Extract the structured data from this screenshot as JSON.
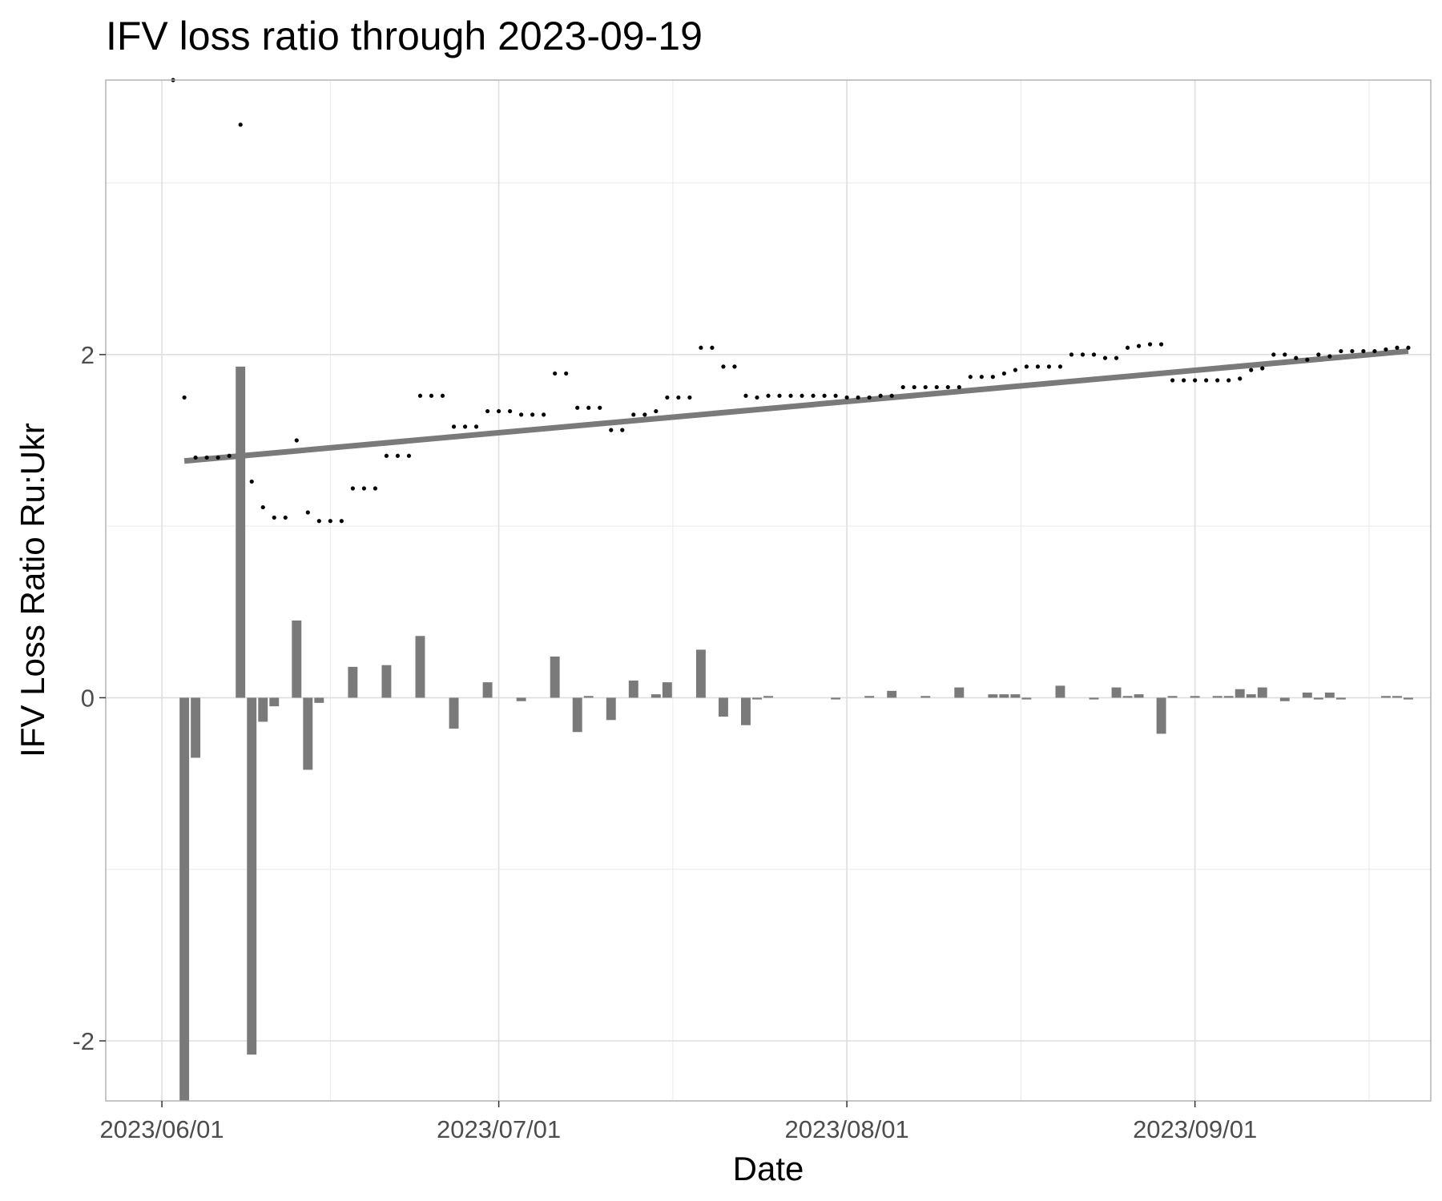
{
  "chart_data": {
    "type": "bar",
    "title": "IFV loss ratio through 2023-09-19",
    "xlabel": "Date",
    "ylabel": "IFV Loss Ratio Ru:Ukr",
    "x_axis": {
      "kind": "date",
      "range": [
        "2023-05-27",
        "2023-09-22"
      ],
      "tick_dates": [
        "2023-06-01",
        "2023-07-01",
        "2023-08-01",
        "2023-09-01"
      ],
      "tick_labels": [
        "2023/06/01",
        "2023/07/01",
        "2023/08/01",
        "2023/09/01"
      ]
    },
    "y_axis": {
      "range": [
        -2.35,
        3.6
      ],
      "ticks": [
        -2,
        0,
        2
      ],
      "tick_labels": [
        "-2",
        "0",
        "2"
      ],
      "minor_ticks": [
        -1,
        1,
        3
      ]
    },
    "grid": true,
    "legend": "none",
    "colors": {
      "bars": "#7a7a7a",
      "trend": "#7a7a7a",
      "points": "#000000"
    },
    "series": [
      {
        "type": "points",
        "values": [
          [
            "2023-06-02",
            3.6
          ],
          [
            "2023-06-03",
            1.75
          ],
          [
            "2023-06-04",
            1.4
          ],
          [
            "2023-06-05",
            1.4
          ],
          [
            "2023-06-06",
            1.4
          ],
          [
            "2023-06-07",
            1.41
          ],
          [
            "2023-06-08",
            3.34
          ],
          [
            "2023-06-09",
            1.26
          ],
          [
            "2023-06-10",
            1.11
          ],
          [
            "2023-06-11",
            1.05
          ],
          [
            "2023-06-12",
            1.05
          ],
          [
            "2023-06-13",
            1.5
          ],
          [
            "2023-06-14",
            1.08
          ],
          [
            "2023-06-15",
            1.03
          ],
          [
            "2023-06-16",
            1.03
          ],
          [
            "2023-06-17",
            1.03
          ],
          [
            "2023-06-18",
            1.22
          ],
          [
            "2023-06-19",
            1.22
          ],
          [
            "2023-06-20",
            1.22
          ],
          [
            "2023-06-21",
            1.41
          ],
          [
            "2023-06-22",
            1.41
          ],
          [
            "2023-06-23",
            1.41
          ],
          [
            "2023-06-24",
            1.76
          ],
          [
            "2023-06-25",
            1.76
          ],
          [
            "2023-06-26",
            1.76
          ],
          [
            "2023-06-27",
            1.58
          ],
          [
            "2023-06-28",
            1.58
          ],
          [
            "2023-06-29",
            1.58
          ],
          [
            "2023-06-30",
            1.67
          ],
          [
            "2023-07-01",
            1.67
          ],
          [
            "2023-07-02",
            1.67
          ],
          [
            "2023-07-03",
            1.65
          ],
          [
            "2023-07-04",
            1.65
          ],
          [
            "2023-07-05",
            1.65
          ],
          [
            "2023-07-06",
            1.89
          ],
          [
            "2023-07-07",
            1.89
          ],
          [
            "2023-07-08",
            1.69
          ],
          [
            "2023-07-09",
            1.69
          ],
          [
            "2023-07-10",
            1.69
          ],
          [
            "2023-07-11",
            1.56
          ],
          [
            "2023-07-12",
            1.56
          ],
          [
            "2023-07-13",
            1.65
          ],
          [
            "2023-07-14",
            1.65
          ],
          [
            "2023-07-15",
            1.67
          ],
          [
            "2023-07-16",
            1.75
          ],
          [
            "2023-07-17",
            1.75
          ],
          [
            "2023-07-18",
            1.75
          ],
          [
            "2023-07-19",
            2.04
          ],
          [
            "2023-07-20",
            2.04
          ],
          [
            "2023-07-21",
            1.93
          ],
          [
            "2023-07-22",
            1.93
          ],
          [
            "2023-07-23",
            1.76
          ],
          [
            "2023-07-24",
            1.75
          ],
          [
            "2023-07-25",
            1.76
          ],
          [
            "2023-07-26",
            1.76
          ],
          [
            "2023-07-27",
            1.76
          ],
          [
            "2023-07-28",
            1.76
          ],
          [
            "2023-07-29",
            1.76
          ],
          [
            "2023-07-30",
            1.76
          ],
          [
            "2023-07-31",
            1.76
          ],
          [
            "2023-08-01",
            1.75
          ],
          [
            "2023-08-02",
            1.75
          ],
          [
            "2023-08-03",
            1.75
          ],
          [
            "2023-08-04",
            1.76
          ],
          [
            "2023-08-05",
            1.76
          ],
          [
            "2023-08-06",
            1.81
          ],
          [
            "2023-08-07",
            1.81
          ],
          [
            "2023-08-08",
            1.81
          ],
          [
            "2023-08-09",
            1.81
          ],
          [
            "2023-08-10",
            1.81
          ],
          [
            "2023-08-11",
            1.81
          ],
          [
            "2023-08-12",
            1.87
          ],
          [
            "2023-08-13",
            1.87
          ],
          [
            "2023-08-14",
            1.87
          ],
          [
            "2023-08-15",
            1.89
          ],
          [
            "2023-08-16",
            1.91
          ],
          [
            "2023-08-17",
            1.93
          ],
          [
            "2023-08-18",
            1.93
          ],
          [
            "2023-08-19",
            1.93
          ],
          [
            "2023-08-20",
            1.93
          ],
          [
            "2023-08-21",
            2.0
          ],
          [
            "2023-08-22",
            2.0
          ],
          [
            "2023-08-23",
            2.0
          ],
          [
            "2023-08-24",
            1.98
          ],
          [
            "2023-08-25",
            1.98
          ],
          [
            "2023-08-26",
            2.04
          ],
          [
            "2023-08-27",
            2.05
          ],
          [
            "2023-08-28",
            2.06
          ],
          [
            "2023-08-29",
            2.06
          ],
          [
            "2023-08-30",
            1.85
          ],
          [
            "2023-08-31",
            1.85
          ],
          [
            "2023-09-01",
            1.85
          ],
          [
            "2023-09-02",
            1.85
          ],
          [
            "2023-09-03",
            1.85
          ],
          [
            "2023-09-04",
            1.85
          ],
          [
            "2023-09-05",
            1.86
          ],
          [
            "2023-09-06",
            1.91
          ],
          [
            "2023-09-07",
            1.92
          ],
          [
            "2023-09-08",
            2.0
          ],
          [
            "2023-09-09",
            2.0
          ],
          [
            "2023-09-10",
            1.98
          ],
          [
            "2023-09-11",
            1.97
          ],
          [
            "2023-09-12",
            2.0
          ],
          [
            "2023-09-13",
            1.99
          ],
          [
            "2023-09-14",
            2.02
          ],
          [
            "2023-09-15",
            2.02
          ],
          [
            "2023-09-16",
            2.02
          ],
          [
            "2023-09-17",
            2.02
          ],
          [
            "2023-09-18",
            2.03
          ],
          [
            "2023-09-19",
            2.04
          ],
          [
            "2023-09-20",
            2.04
          ]
        ]
      },
      {
        "type": "bar",
        "values": [
          [
            "2023-06-03",
            -2.35
          ],
          [
            "2023-06-04",
            -0.35
          ],
          [
            "2023-06-08",
            1.93
          ],
          [
            "2023-06-09",
            -2.08
          ],
          [
            "2023-06-10",
            -0.14
          ],
          [
            "2023-06-11",
            -0.05
          ],
          [
            "2023-06-13",
            0.45
          ],
          [
            "2023-06-14",
            -0.42
          ],
          [
            "2023-06-15",
            -0.03
          ],
          [
            "2023-06-18",
            0.18
          ],
          [
            "2023-06-21",
            0.19
          ],
          [
            "2023-06-24",
            0.36
          ],
          [
            "2023-06-27",
            -0.18
          ],
          [
            "2023-06-30",
            0.09
          ],
          [
            "2023-07-03",
            -0.02
          ],
          [
            "2023-07-06",
            0.24
          ],
          [
            "2023-07-08",
            -0.2
          ],
          [
            "2023-07-09",
            0.01
          ],
          [
            "2023-07-11",
            -0.13
          ],
          [
            "2023-07-13",
            0.1
          ],
          [
            "2023-07-15",
            0.02
          ],
          [
            "2023-07-16",
            0.09
          ],
          [
            "2023-07-19",
            0.28
          ],
          [
            "2023-07-21",
            -0.11
          ],
          [
            "2023-07-23",
            -0.16
          ],
          [
            "2023-07-24",
            -0.01
          ],
          [
            "2023-07-25",
            0.01
          ],
          [
            "2023-07-31",
            -0.01
          ],
          [
            "2023-08-03",
            0.01
          ],
          [
            "2023-08-05",
            0.04
          ],
          [
            "2023-08-08",
            0.01
          ],
          [
            "2023-08-11",
            0.06
          ],
          [
            "2023-08-14",
            0.02
          ],
          [
            "2023-08-15",
            0.02
          ],
          [
            "2023-08-16",
            0.02
          ],
          [
            "2023-08-17",
            -0.01
          ],
          [
            "2023-08-20",
            0.07
          ],
          [
            "2023-08-23",
            -0.01
          ],
          [
            "2023-08-25",
            0.06
          ],
          [
            "2023-08-26",
            0.01
          ],
          [
            "2023-08-27",
            0.02
          ],
          [
            "2023-08-29",
            -0.21
          ],
          [
            "2023-08-30",
            0.01
          ],
          [
            "2023-09-01",
            0.01
          ],
          [
            "2023-09-03",
            0.01
          ],
          [
            "2023-09-04",
            0.01
          ],
          [
            "2023-09-05",
            0.05
          ],
          [
            "2023-09-06",
            0.02
          ],
          [
            "2023-09-07",
            0.06
          ],
          [
            "2023-09-09",
            -0.02
          ],
          [
            "2023-09-11",
            0.03
          ],
          [
            "2023-09-12",
            -0.01
          ],
          [
            "2023-09-13",
            0.03
          ],
          [
            "2023-09-14",
            -0.01
          ],
          [
            "2023-09-18",
            0.01
          ],
          [
            "2023-09-19",
            0.01
          ],
          [
            "2023-09-20",
            -0.01
          ]
        ]
      },
      {
        "type": "line",
        "values": [
          [
            "2023-06-03",
            1.38
          ],
          [
            "2023-09-20",
            2.02
          ]
        ]
      }
    ]
  }
}
